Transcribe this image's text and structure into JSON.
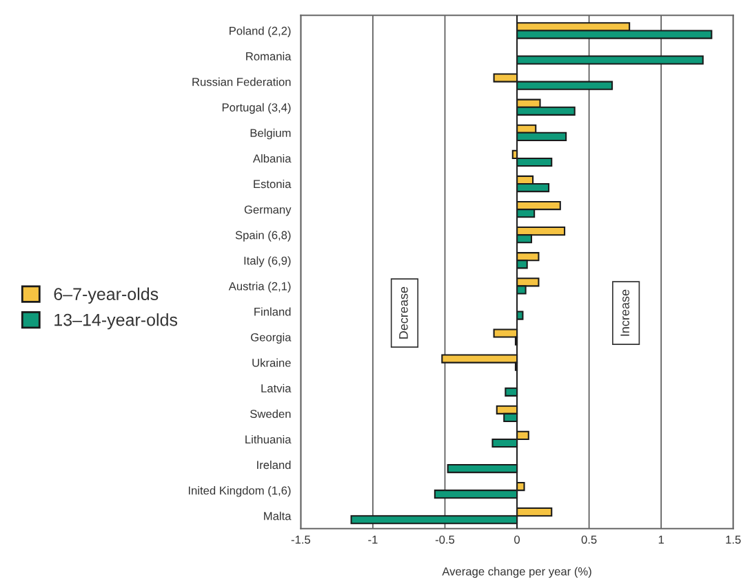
{
  "chart_data": {
    "type": "bar",
    "orientation": "horizontal",
    "xlabel": "Average change per year (%)",
    "categories": [
      "Poland (2,2)",
      "Romania",
      "Russian Federation",
      "Portugal (3,4)",
      "Belgium",
      "Albania",
      "Estonia",
      "Germany",
      "Spain (6,8)",
      "Italy (6,9)",
      "Austria (2,1)",
      "Finland",
      "Georgia",
      "Ukraine",
      "Latvia",
      "Sweden",
      "Lithuania",
      "Ireland",
      "Inited Kingdom (1,6)",
      "Malta"
    ],
    "series": [
      {
        "name": "6–7-year-olds",
        "color": "#f5c342",
        "values": [
          0.78,
          null,
          -0.16,
          0.16,
          0.13,
          -0.03,
          0.11,
          0.3,
          0.33,
          0.15,
          0.15,
          null,
          -0.16,
          -0.52,
          null,
          -0.14,
          0.08,
          null,
          0.05,
          0.24
        ]
      },
      {
        "name": "13–14-year-olds",
        "color": "#0f9a7a",
        "values": [
          1.35,
          1.29,
          0.66,
          0.4,
          0.34,
          0.24,
          0.22,
          0.12,
          0.1,
          0.07,
          0.06,
          0.04,
          -0.01,
          -0.01,
          -0.08,
          -0.09,
          -0.17,
          -0.48,
          -0.57,
          -1.15
        ]
      }
    ],
    "xlim": [
      -1.5,
      1.5
    ],
    "xticks": [
      -1.5,
      -1,
      -0.5,
      0,
      0.5,
      1,
      1.5
    ],
    "grid": "x",
    "legend": "left",
    "annotations": [
      "Decrease",
      "Increase"
    ]
  }
}
